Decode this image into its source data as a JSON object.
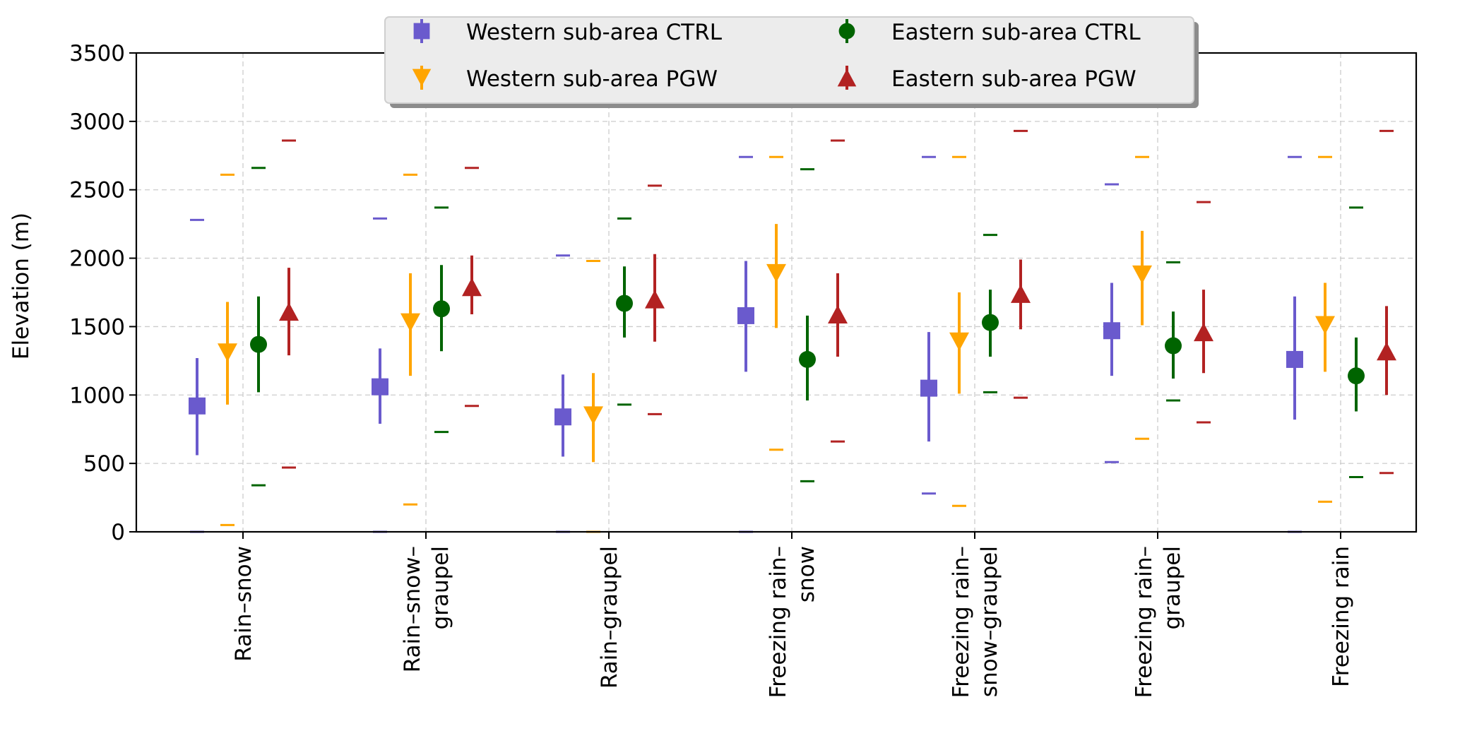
{
  "chart_data": {
    "type": "errorbar",
    "title": "",
    "xlabel": "",
    "ylabel": "Elevation (m)",
    "ylim": [
      0,
      3500
    ],
    "yticks": [
      0,
      500,
      1000,
      1500,
      2000,
      2500,
      3000,
      3500
    ],
    "grid": true,
    "legend_position": "top-center",
    "categories": [
      [
        "Rain–snow"
      ],
      [
        "Rain–snow–",
        "graupel"
      ],
      [
        "Rain–graupel"
      ],
      [
        "Freezing rain–",
        "snow"
      ],
      [
        "Freezing rain–",
        "snow–graupel"
      ],
      [
        "Freezing rain–",
        "graupel"
      ],
      [
        "Freezing rain"
      ]
    ],
    "series": [
      {
        "name": "Western sub-area CTRL",
        "color": "#6a5acd",
        "marker": "square",
        "mean": [
          920,
          1060,
          840,
          1580,
          1050,
          1470,
          1260
        ],
        "err_low": [
          560,
          790,
          550,
          1170,
          660,
          1140,
          820
        ],
        "err_high": [
          1270,
          1340,
          1150,
          1980,
          1460,
          1820,
          1720
        ],
        "min": [
          0,
          0,
          0,
          0,
          280,
          510,
          0
        ],
        "max": [
          2280,
          2290,
          2020,
          2740,
          2740,
          2540,
          2740
        ]
      },
      {
        "name": "Western sub-area PGW",
        "color": "#ffa500",
        "marker": "triangle-down",
        "mean": [
          1310,
          1530,
          850,
          1890,
          1390,
          1880,
          1510
        ],
        "err_low": [
          930,
          1140,
          510,
          1490,
          1010,
          1510,
          1170
        ],
        "err_high": [
          1680,
          1890,
          1160,
          2250,
          1750,
          2200,
          1820
        ],
        "min": [
          50,
          200,
          0,
          600,
          190,
          680,
          220
        ],
        "max": [
          2610,
          2610,
          1980,
          2740,
          2740,
          2740,
          2740
        ]
      },
      {
        "name": "Eastern sub-area CTRL",
        "color": "#006400",
        "marker": "circle",
        "mean": [
          1370,
          1630,
          1670,
          1260,
          1530,
          1360,
          1140
        ],
        "err_low": [
          1020,
          1320,
          1420,
          960,
          1280,
          1120,
          880
        ],
        "err_high": [
          1720,
          1950,
          1940,
          1580,
          1770,
          1610,
          1420
        ],
        "min": [
          340,
          730,
          930,
          370,
          1020,
          960,
          400
        ],
        "max": [
          2660,
          2370,
          2290,
          2650,
          2170,
          1970,
          2370
        ]
      },
      {
        "name": "Eastern sub-area PGW",
        "color": "#b22222",
        "marker": "triangle-up",
        "mean": [
          1610,
          1790,
          1700,
          1590,
          1740,
          1460,
          1320
        ],
        "err_low": [
          1290,
          1590,
          1390,
          1280,
          1480,
          1160,
          1000
        ],
        "err_high": [
          1930,
          2020,
          2030,
          1890,
          1990,
          1770,
          1650
        ],
        "min": [
          470,
          920,
          860,
          660,
          980,
          800,
          430
        ],
        "max": [
          2860,
          2660,
          2530,
          2860,
          2930,
          2410,
          2930
        ]
      }
    ]
  }
}
